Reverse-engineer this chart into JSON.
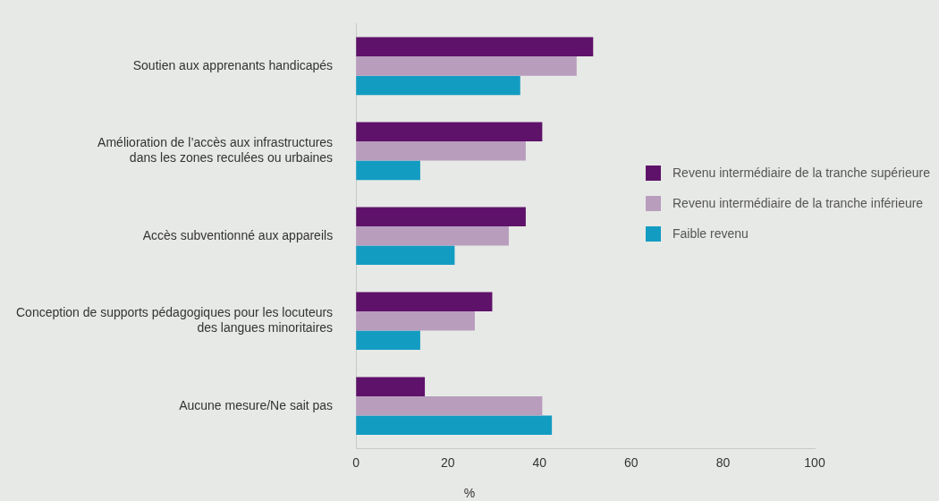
{
  "chart_data": {
    "type": "bar",
    "orientation": "horizontal",
    "xlabel": "%",
    "categories": [
      "Soutien aux apprenants handicapés",
      "Amélioration de l’accès aux infrastructures\ndans les zones reculées ou urbaines",
      "Accès subventionné aux appareils",
      "Conception de supports pédagogiques pour les locuteurs\ndes langues minoritaires",
      "Aucune mesure/Ne sait pas"
    ],
    "series": [
      {
        "name": "Revenu intermédiaire de la tranche supérieure",
        "color": "#5f126a",
        "values": [
          51.7,
          40.6,
          37,
          29.7,
          15
        ]
      },
      {
        "name": "Revenu intermédiaire de la tranche inférieure",
        "color": "#b89dbd",
        "values": [
          48.1,
          37,
          33.3,
          25.9,
          40.6
        ]
      },
      {
        "name": "Faible revenu",
        "color": "#139cc2",
        "values": [
          35.8,
          14,
          21.5,
          14,
          42.7
        ]
      }
    ],
    "xlim": [
      0,
      100
    ],
    "xticks": [
      0,
      20,
      40,
      60,
      80,
      100
    ],
    "grid": false,
    "legend": "right"
  }
}
